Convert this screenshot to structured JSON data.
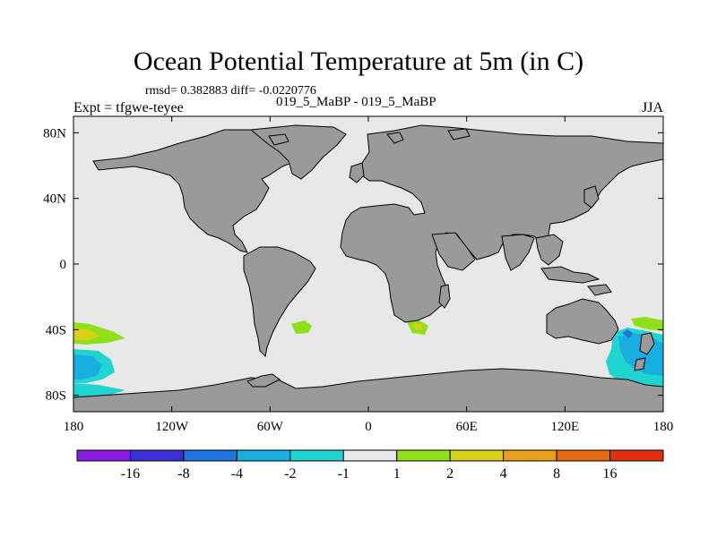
{
  "title": "Ocean Potential Temperature at 5m (in C)",
  "stats": "rmsd= 0.382883 diff= -0.0220776",
  "case_label": "019_5_MaBP - 019_5_MaBP",
  "expt_label": "Expt = tfgwe-teyee",
  "season": "JJA",
  "map": {
    "lon_range": [
      -180,
      180
    ],
    "lat_range": [
      -90,
      90
    ],
    "lon_ticks": [
      {
        "lon": -180,
        "label": "180"
      },
      {
        "lon": -120,
        "label": "120W"
      },
      {
        "lon": -60,
        "label": "60W"
      },
      {
        "lon": 0,
        "label": "0"
      },
      {
        "lon": 60,
        "label": "60E"
      },
      {
        "lon": 120,
        "label": "120E"
      },
      {
        "lon": 180,
        "label": "180"
      }
    ],
    "lat_ticks": [
      {
        "lat": 80,
        "label": "80N"
      },
      {
        "lat": 40,
        "label": "40N"
      },
      {
        "lat": 0,
        "label": "0"
      },
      {
        "lat": -40,
        "label": "40S"
      },
      {
        "lat": -80,
        "label": "80S"
      }
    ],
    "colors": {
      "ocean_background": "#e8e8e8",
      "land": "#9a9a9a",
      "coast": "#000000"
    }
  },
  "colorbar": {
    "colors": [
      "#8a1ee0",
      "#3b2fd6",
      "#1f74de",
      "#18aee0",
      "#20d4d0",
      "#e8e8e8",
      "#8fe01a",
      "#d8d01a",
      "#e6a01a",
      "#e66a12",
      "#e0300e"
    ],
    "labels": [
      "-16",
      "-8",
      "-4",
      "-2",
      "-1",
      "1",
      "2",
      "4",
      "8",
      "16"
    ]
  }
}
